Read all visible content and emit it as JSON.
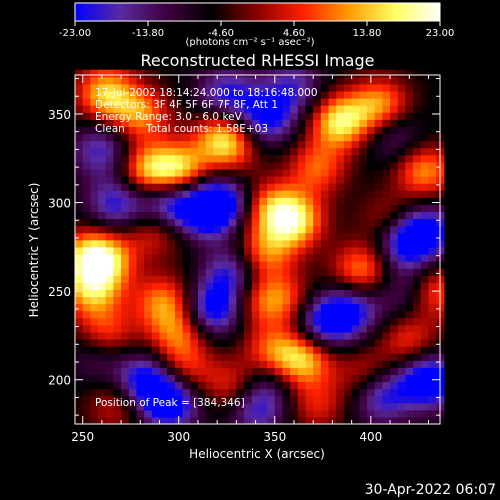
{
  "colorbar": {
    "min": -23.0,
    "max": 23.0,
    "ticks": [
      -23.0,
      -13.8,
      -4.6,
      4.6,
      13.8,
      23.0
    ],
    "tick_labels": [
      "-23.00",
      "-13.80",
      "-4.60",
      "4.60",
      "13.80",
      "23.00"
    ],
    "unit_label": "(photons cm⁻² s⁻¹ asec⁻²)",
    "colors": [
      "#0000ff",
      "#5a2aa0",
      "#400040",
      "#000000",
      "#8a0000",
      "#ff2000",
      "#ff9a00",
      "#ffff60",
      "#ffffff"
    ]
  },
  "chart_data": {
    "type": "heatmap",
    "title": "Reconstructed RHESSI Image",
    "xlabel": "Heliocentric X (arcsec)",
    "ylabel": "Heliocentric Y (arcsec)",
    "xlim": [
      246,
      436
    ],
    "ylim": [
      175,
      372
    ],
    "xticks": [
      250,
      300,
      350,
      400
    ],
    "yticks": [
      200,
      250,
      300,
      350
    ],
    "xtick_labels": [
      "250",
      "300",
      "350",
      "400"
    ],
    "ytick_labels": [
      "200",
      "250",
      "300",
      "350"
    ],
    "peak": [
      384,
      346
    ],
    "annotations": {
      "time": "17-Jul-2002 18:14:24.000 to 18:16:48.000",
      "detectors": "Detectors: 3F 4F 5F 6F 7F 8F, Att 1",
      "energy": "Energy Range: 3.0 - 6.0 keV",
      "method": "Clean",
      "counts": "Total counts: 1.58E+03",
      "peak_label": "Position of Peak = [384,346]"
    },
    "blobs": [
      {
        "x": 262,
        "y": 362,
        "v": 20
      },
      {
        "x": 280,
        "y": 350,
        "v": 16
      },
      {
        "x": 300,
        "y": 318,
        "v": 22
      },
      {
        "x": 283,
        "y": 318,
        "v": 18
      },
      {
        "x": 323,
        "y": 340,
        "v": 15
      },
      {
        "x": 384,
        "y": 346,
        "v": 23
      },
      {
        "x": 405,
        "y": 355,
        "v": 18
      },
      {
        "x": 428,
        "y": 318,
        "v": 17
      },
      {
        "x": 372,
        "y": 320,
        "v": 14
      },
      {
        "x": 360,
        "y": 290,
        "v": 22
      },
      {
        "x": 348,
        "y": 298,
        "v": 14
      },
      {
        "x": 326,
        "y": 330,
        "v": 12
      },
      {
        "x": 262,
        "y": 268,
        "v": 18
      },
      {
        "x": 252,
        "y": 270,
        "v": 15
      },
      {
        "x": 288,
        "y": 285,
        "v": 12
      },
      {
        "x": 255,
        "y": 250,
        "v": 18
      },
      {
        "x": 262,
        "y": 225,
        "v": 15
      },
      {
        "x": 292,
        "y": 244,
        "v": 16
      },
      {
        "x": 300,
        "y": 226,
        "v": 14
      },
      {
        "x": 303,
        "y": 205,
        "v": 12
      },
      {
        "x": 345,
        "y": 272,
        "v": 15
      },
      {
        "x": 355,
        "y": 245,
        "v": 13
      },
      {
        "x": 395,
        "y": 262,
        "v": 17
      },
      {
        "x": 432,
        "y": 250,
        "v": 17
      },
      {
        "x": 365,
        "y": 212,
        "v": 20
      },
      {
        "x": 348,
        "y": 215,
        "v": 15
      },
      {
        "x": 330,
        "y": 196,
        "v": 14
      },
      {
        "x": 398,
        "y": 202,
        "v": 12
      },
      {
        "x": 420,
        "y": 222,
        "v": 12
      },
      {
        "x": 410,
        "y": 290,
        "v": 10
      },
      {
        "x": 340,
        "y": 245,
        "v": 10
      },
      {
        "x": 372,
        "y": 186,
        "v": 10
      },
      {
        "x": 268,
        "y": 186,
        "v": 10
      },
      {
        "x": 320,
        "y": 260,
        "v": 8
      },
      {
        "x": 268,
        "y": 300,
        "v": -16
      },
      {
        "x": 295,
        "y": 300,
        "v": -20
      },
      {
        "x": 315,
        "y": 295,
        "v": -18
      },
      {
        "x": 325,
        "y": 260,
        "v": -22
      },
      {
        "x": 318,
        "y": 240,
        "v": -20
      },
      {
        "x": 282,
        "y": 200,
        "v": -18
      },
      {
        "x": 295,
        "y": 188,
        "v": -23
      },
      {
        "x": 325,
        "y": 360,
        "v": -16
      },
      {
        "x": 345,
        "y": 348,
        "v": -18
      },
      {
        "x": 322,
        "y": 302,
        "v": -15
      },
      {
        "x": 375,
        "y": 232,
        "v": -18
      },
      {
        "x": 390,
        "y": 240,
        "v": -16
      },
      {
        "x": 420,
        "y": 250,
        "v": -12
      },
      {
        "x": 418,
        "y": 278,
        "v": -20
      },
      {
        "x": 430,
        "y": 285,
        "v": -15
      },
      {
        "x": 430,
        "y": 200,
        "v": -23
      },
      {
        "x": 405,
        "y": 192,
        "v": -18
      },
      {
        "x": 340,
        "y": 185,
        "v": -16
      },
      {
        "x": 360,
        "y": 365,
        "v": -12
      },
      {
        "x": 412,
        "y": 338,
        "v": -10
      },
      {
        "x": 260,
        "y": 330,
        "v": -14
      },
      {
        "x": 258,
        "y": 215,
        "v": -10
      },
      {
        "x": 345,
        "y": 202,
        "v": -10
      }
    ]
  },
  "footer": {
    "date": "30-Apr-2022 06:07"
  }
}
